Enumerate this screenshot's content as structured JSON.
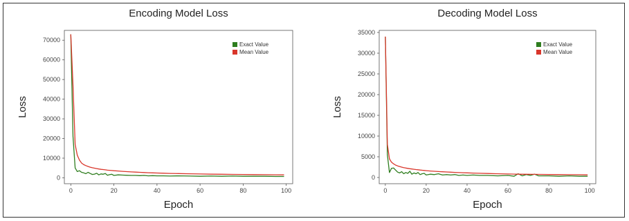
{
  "chart_data": [
    {
      "type": "line",
      "title": "Encoding Model Loss",
      "xlabel": "Epoch",
      "ylabel": "Loss",
      "xlim": [
        -3,
        103
      ],
      "ylim": [
        -3000,
        75000
      ],
      "xticks": [
        0,
        20,
        40,
        60,
        80,
        100
      ],
      "yticks": [
        0,
        10000,
        20000,
        30000,
        40000,
        50000,
        60000,
        70000
      ],
      "legend": "top-right",
      "grid": false,
      "x": [
        0,
        1,
        2,
        3,
        4,
        5,
        6,
        7,
        8,
        9,
        10,
        11,
        12,
        13,
        14,
        15,
        16,
        17,
        18,
        19,
        20,
        22,
        24,
        26,
        28,
        30,
        32,
        34,
        36,
        38,
        40,
        43,
        46,
        50,
        55,
        60,
        65,
        70,
        75,
        80,
        85,
        90,
        95,
        99
      ],
      "series": [
        {
          "name": "Exact Value",
          "color": "#2e7d1e",
          "values": [
            73000,
            21000,
            5000,
            3200,
            3600,
            2800,
            2500,
            2100,
            2800,
            2200,
            1700,
            1900,
            2300,
            1500,
            2000,
            1800,
            2200,
            1300,
            1600,
            1800,
            1200,
            1500,
            1400,
            1300,
            1200,
            1200,
            1100,
            1200,
            1000,
            1100,
            1000,
            1000,
            900,
            1000,
            900,
            800,
            900,
            800,
            900,
            800,
            800,
            800,
            700,
            700
          ]
        },
        {
          "name": "Mean Value",
          "color": "#d9362b",
          "values": [
            73000,
            47000,
            17000,
            11500,
            9000,
            7500,
            6700,
            6200,
            5800,
            5400,
            5100,
            4900,
            4700,
            4500,
            4300,
            4200,
            4050,
            3900,
            3800,
            3700,
            3600,
            3450,
            3300,
            3150,
            3000,
            2900,
            2800,
            2700,
            2600,
            2500,
            2450,
            2350,
            2250,
            2150,
            2050,
            1950,
            1850,
            1800,
            1750,
            1700,
            1650,
            1600,
            1550,
            1500
          ]
        }
      ]
    },
    {
      "type": "line",
      "title": "Decoding Model Loss",
      "xlabel": "Epoch",
      "ylabel": "Loss",
      "xlim": [
        -3,
        103
      ],
      "ylim": [
        -1500,
        35500
      ],
      "xticks": [
        0,
        20,
        40,
        60,
        80,
        100
      ],
      "yticks": [
        0,
        5000,
        10000,
        15000,
        20000,
        25000,
        30000,
        35000
      ],
      "legend": "top-right",
      "grid": false,
      "x": [
        0,
        1,
        2,
        3,
        4,
        5,
        6,
        7,
        8,
        9,
        10,
        11,
        12,
        13,
        14,
        15,
        16,
        17,
        18,
        19,
        20,
        22,
        24,
        26,
        28,
        30,
        32,
        34,
        36,
        38,
        40,
        43,
        46,
        50,
        55,
        60,
        63,
        65,
        67,
        69,
        71,
        73,
        75,
        80,
        85,
        90,
        95,
        99
      ],
      "series": [
        {
          "name": "Exact Value",
          "color": "#2e7d1e",
          "values": [
            34000,
            5500,
            1200,
            2200,
            2300,
            1800,
            1300,
            1100,
            1400,
            900,
            1200,
            1000,
            1500,
            800,
            1100,
            900,
            1200,
            700,
            900,
            1000,
            600,
            800,
            700,
            900,
            600,
            700,
            600,
            700,
            500,
            600,
            500,
            600,
            500,
            500,
            400,
            500,
            300,
            900,
            400,
            700,
            500,
            800,
            400,
            400,
            300,
            400,
            300,
            300
          ]
        },
        {
          "name": "Mean Value",
          "color": "#d9362b",
          "values": [
            34000,
            8000,
            4500,
            3700,
            3300,
            3000,
            2800,
            2650,
            2500,
            2380,
            2280,
            2200,
            2120,
            2050,
            1980,
            1920,
            1860,
            1800,
            1750,
            1700,
            1650,
            1570,
            1500,
            1440,
            1380,
            1330,
            1280,
            1230,
            1190,
            1150,
            1110,
            1060,
            1010,
            960,
            900,
            850,
            820,
            800,
            790,
            780,
            770,
            760,
            750,
            720,
            700,
            680,
            660,
            640
          ]
        }
      ]
    }
  ]
}
